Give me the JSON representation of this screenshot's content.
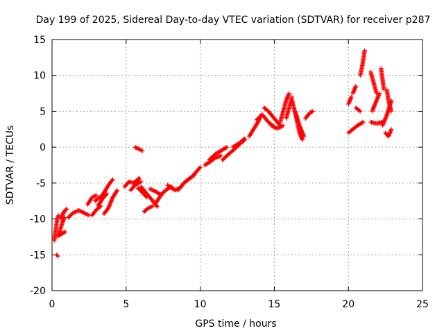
{
  "chart_data": {
    "type": "scatter",
    "title": "Day 199 of 2025, Sidereal Day-to-day VTEC variation (SDTVAR) for receiver p287",
    "xlabel": "GPS time / hours",
    "ylabel": "SDTVAR / TECUs",
    "xlim": [
      0,
      25
    ],
    "ylim": [
      -20,
      15
    ],
    "xticks": [
      0,
      5,
      10,
      15,
      20,
      25
    ],
    "yticks": [
      -20,
      -15,
      -10,
      -5,
      0,
      5,
      10,
      15
    ],
    "grid": true,
    "marker": "+",
    "series": [
      {
        "name": "SDTVAR",
        "color": "#ff0000",
        "segments": [
          [
            [
              0.3,
              -15.0
            ],
            [
              0.4,
              -15.2
            ]
          ],
          [
            [
              0.15,
              -13.0
            ],
            [
              0.25,
              -11.5
            ],
            [
              0.35,
              -10.0
            ],
            [
              0.45,
              -9.5
            ]
          ],
          [
            [
              0.4,
              -12.5
            ],
            [
              0.55,
              -11.5
            ],
            [
              0.7,
              -10.5
            ],
            [
              0.85,
              -9.8
            ]
          ],
          [
            [
              0.5,
              -12.3
            ],
            [
              0.7,
              -12.0
            ],
            [
              0.9,
              -11.8
            ]
          ],
          [
            [
              0.6,
              -10.0
            ],
            [
              0.8,
              -9.0
            ],
            [
              1.0,
              -8.6
            ]
          ],
          [
            [
              1.1,
              -9.8
            ],
            [
              1.4,
              -9.2
            ],
            [
              1.8,
              -8.8
            ],
            [
              2.2,
              -9.2
            ],
            [
              2.5,
              -9.5
            ]
          ],
          [
            [
              2.4,
              -8.0
            ],
            [
              2.7,
              -7.0
            ],
            [
              3.0,
              -6.7
            ]
          ],
          [
            [
              2.7,
              -9.5
            ],
            [
              3.0,
              -8.7
            ],
            [
              3.3,
              -8.2
            ]
          ],
          [
            [
              2.9,
              -7.5
            ],
            [
              3.2,
              -7.0
            ],
            [
              3.5,
              -6.8
            ]
          ],
          [
            [
              3.1,
              -8.2
            ],
            [
              3.4,
              -7.2
            ],
            [
              3.7,
              -6.5
            ]
          ],
          [
            [
              3.3,
              -7.0
            ],
            [
              3.6,
              -6.0
            ],
            [
              3.9,
              -5.0
            ],
            [
              4.1,
              -4.5
            ]
          ],
          [
            [
              3.5,
              -9.3
            ],
            [
              3.8,
              -8.5
            ],
            [
              4.1,
              -7.0
            ],
            [
              4.4,
              -6.0
            ]
          ],
          [
            [
              4.9,
              -5.5
            ],
            [
              5.2,
              -4.8
            ],
            [
              5.5,
              -5.0
            ],
            [
              5.9,
              -4.3
            ]
          ],
          [
            [
              5.3,
              -6.0
            ],
            [
              5.6,
              -5.3
            ],
            [
              6.0,
              -4.8
            ]
          ],
          [
            [
              5.6,
              0.0
            ],
            [
              5.8,
              -0.2
            ],
            [
              6.1,
              -0.5
            ]
          ],
          [
            [
              5.8,
              -5.7
            ],
            [
              6.1,
              -6.3
            ],
            [
              6.4,
              -7.0
            ]
          ],
          [
            [
              6.0,
              -5.5
            ],
            [
              6.4,
              -6.5
            ],
            [
              6.8,
              -7.5
            ],
            [
              7.1,
              -8.3
            ]
          ],
          [
            [
              6.2,
              -9.0
            ],
            [
              6.5,
              -8.5
            ],
            [
              6.8,
              -8.2
            ]
          ],
          [
            [
              6.6,
              -5.8
            ],
            [
              7.0,
              -6.2
            ],
            [
              7.4,
              -6.7
            ]
          ],
          [
            [
              7.0,
              -7.8
            ],
            [
              7.4,
              -6.5
            ],
            [
              7.8,
              -5.8
            ],
            [
              8.1,
              -5.5
            ]
          ],
          [
            [
              7.8,
              -5.3
            ],
            [
              8.3,
              -6.0
            ],
            [
              8.7,
              -5.6
            ]
          ],
          [
            [
              8.5,
              -6.0
            ],
            [
              8.9,
              -5.0
            ],
            [
              9.2,
              -4.5
            ],
            [
              9.6,
              -3.9
            ]
          ],
          [
            [
              9.0,
              -4.8
            ],
            [
              9.5,
              -4.0
            ],
            [
              10.0,
              -2.8
            ]
          ],
          [
            [
              10.3,
              -2.5
            ],
            [
              10.7,
              -2.0
            ],
            [
              11.0,
              -1.5
            ],
            [
              11.4,
              -1.2
            ]
          ],
          [
            [
              10.6,
              -1.8
            ],
            [
              11.0,
              -1.0
            ],
            [
              11.4,
              -0.5
            ],
            [
              11.8,
              0.0
            ]
          ],
          [
            [
              11.5,
              -1.8
            ],
            [
              11.9,
              -1.0
            ],
            [
              12.3,
              -0.3
            ],
            [
              12.7,
              0.5
            ],
            [
              13.0,
              1.0
            ]
          ],
          [
            [
              12.2,
              0.0
            ],
            [
              12.6,
              0.5
            ],
            [
              13.0,
              1.2
            ]
          ],
          [
            [
              13.3,
              1.5
            ],
            [
              13.6,
              2.5
            ],
            [
              13.9,
              3.5
            ],
            [
              14.1,
              4.5
            ]
          ],
          [
            [
              13.8,
              3.8
            ],
            [
              14.2,
              4.5
            ],
            [
              14.6,
              3.5
            ],
            [
              15.0,
              2.8
            ]
          ],
          [
            [
              14.3,
              5.5
            ],
            [
              14.6,
              5.0
            ],
            [
              15.0,
              4.0
            ],
            [
              15.4,
              3.0
            ]
          ],
          [
            [
              14.8,
              3.0
            ],
            [
              15.2,
              2.6
            ],
            [
              15.6,
              3.0
            ]
          ],
          [
            [
              15.4,
              3.5
            ],
            [
              15.6,
              5.0
            ],
            [
              15.8,
              6.5
            ],
            [
              16.0,
              7.5
            ]
          ],
          [
            [
              15.8,
              4.0
            ],
            [
              16.0,
              5.5
            ],
            [
              16.2,
              7.0
            ]
          ],
          [
            [
              16.2,
              6.5
            ],
            [
              16.5,
              4.0
            ],
            [
              16.7,
              2.0
            ],
            [
              16.9,
              1.0
            ]
          ],
          [
            [
              16.4,
              5.0
            ],
            [
              16.7,
              3.0
            ],
            [
              17.0,
              1.5
            ]
          ],
          [
            [
              17.1,
              4.0
            ],
            [
              17.4,
              4.8
            ],
            [
              17.6,
              5.0
            ]
          ],
          [
            [
              20.0,
              6.0
            ],
            [
              20.2,
              7.0
            ]
          ],
          [
            [
              20.3,
              7.5
            ],
            [
              20.5,
              8.5
            ]
          ],
          [
            [
              20.0,
              2.0
            ],
            [
              20.3,
              2.5
            ],
            [
              20.6,
              3.0
            ],
            [
              21.0,
              3.5
            ]
          ],
          [
            [
              20.8,
              10.0
            ],
            [
              20.95,
              11.5
            ],
            [
              21.1,
              13.5
            ]
          ],
          [
            [
              20.5,
              5.5
            ],
            [
              20.8,
              5.0
            ]
          ],
          [
            [
              21.5,
              10.5
            ],
            [
              21.7,
              9.0
            ],
            [
              21.9,
              7.5
            ]
          ],
          [
            [
              21.6,
              5.0
            ],
            [
              21.8,
              6.0
            ],
            [
              22.1,
              7.5
            ]
          ],
          [
            [
              21.5,
              3.5
            ],
            [
              21.9,
              3.3
            ],
            [
              22.3,
              3.5
            ]
          ],
          [
            [
              22.2,
              11.0
            ],
            [
              22.3,
              9.5
            ],
            [
              22.4,
              8.0
            ]
          ],
          [
            [
              22.3,
              3.0
            ],
            [
              22.6,
              4.5
            ],
            [
              22.9,
              6.5
            ]
          ],
          [
            [
              22.5,
              2.0
            ],
            [
              22.7,
              1.5
            ],
            [
              22.9,
              2.5
            ]
          ],
          [
            [
              22.6,
              8.0
            ],
            [
              22.7,
              6.5
            ],
            [
              22.9,
              5.0
            ]
          ]
        ]
      }
    ]
  }
}
